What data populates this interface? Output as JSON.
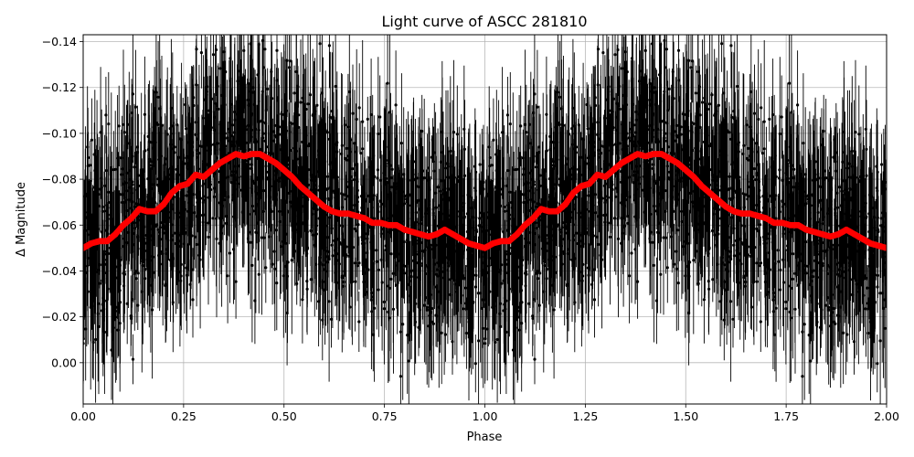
{
  "chart_data": {
    "type": "scatter",
    "title": "Light curve of ASCC 281810",
    "xlabel": "Phase",
    "ylabel": "Δ Magnitude",
    "xlim": [
      0.0,
      2.0
    ],
    "ylim": [
      0.018,
      -0.143
    ],
    "y_axis_inverted": true,
    "grid": true,
    "x_ticks": [
      "0.00",
      "0.25",
      "0.50",
      "0.75",
      "1.00",
      "1.25",
      "1.50",
      "1.75",
      "2.00"
    ],
    "y_ticks": [
      "0.00",
      "−0.02",
      "−0.04",
      "−0.06",
      "−0.08",
      "−0.10",
      "−0.12",
      "−0.14"
    ],
    "series": [
      {
        "kind": "observations-with-errorbars",
        "color": "#000000",
        "phase_period": 1.0,
        "binned_mean_curve": [
          [
            0.0,
            -0.05
          ],
          [
            0.05,
            -0.053
          ],
          [
            0.1,
            -0.06
          ],
          [
            0.15,
            -0.067
          ],
          [
            0.2,
            -0.072
          ],
          [
            0.25,
            -0.077
          ],
          [
            0.3,
            -0.083
          ],
          [
            0.35,
            -0.089
          ],
          [
            0.4,
            -0.091
          ],
          [
            0.45,
            -0.09
          ],
          [
            0.5,
            -0.084
          ],
          [
            0.55,
            -0.076
          ],
          [
            0.6,
            -0.069
          ],
          [
            0.65,
            -0.065
          ],
          [
            0.7,
            -0.063
          ],
          [
            0.75,
            -0.06
          ],
          [
            0.8,
            -0.057
          ],
          [
            0.85,
            -0.056
          ],
          [
            0.9,
            -0.057
          ],
          [
            0.95,
            -0.052
          ],
          [
            1.0,
            -0.05
          ]
        ],
        "typical_scatter": 0.04,
        "typical_errorbar": 0.015
      },
      {
        "kind": "binned-mean",
        "color": "#ff0000",
        "points": [
          [
            0.0,
            -0.05
          ],
          [
            0.02,
            -0.052
          ],
          [
            0.04,
            -0.053
          ],
          [
            0.06,
            -0.053
          ],
          [
            0.08,
            -0.056
          ],
          [
            0.1,
            -0.06
          ],
          [
            0.12,
            -0.063
          ],
          [
            0.14,
            -0.067
          ],
          [
            0.16,
            -0.066
          ],
          [
            0.18,
            -0.066
          ],
          [
            0.2,
            -0.069
          ],
          [
            0.22,
            -0.074
          ],
          [
            0.24,
            -0.077
          ],
          [
            0.26,
            -0.078
          ],
          [
            0.28,
            -0.082
          ],
          [
            0.3,
            -0.081
          ],
          [
            0.32,
            -0.084
          ],
          [
            0.34,
            -0.087
          ],
          [
            0.36,
            -0.089
          ],
          [
            0.38,
            -0.091
          ],
          [
            0.4,
            -0.09
          ],
          [
            0.42,
            -0.091
          ],
          [
            0.44,
            -0.091
          ],
          [
            0.46,
            -0.089
          ],
          [
            0.48,
            -0.087
          ],
          [
            0.5,
            -0.084
          ],
          [
            0.52,
            -0.081
          ],
          [
            0.54,
            -0.077
          ],
          [
            0.56,
            -0.074
          ],
          [
            0.58,
            -0.071
          ],
          [
            0.6,
            -0.068
          ],
          [
            0.62,
            -0.066
          ],
          [
            0.64,
            -0.065
          ],
          [
            0.66,
            -0.065
          ],
          [
            0.68,
            -0.064
          ],
          [
            0.7,
            -0.063
          ],
          [
            0.72,
            -0.061
          ],
          [
            0.74,
            -0.061
          ],
          [
            0.76,
            -0.06
          ],
          [
            0.78,
            -0.06
          ],
          [
            0.8,
            -0.058
          ],
          [
            0.82,
            -0.057
          ],
          [
            0.84,
            -0.056
          ],
          [
            0.86,
            -0.055
          ],
          [
            0.88,
            -0.056
          ],
          [
            0.9,
            -0.058
          ],
          [
            0.92,
            -0.056
          ],
          [
            0.94,
            -0.054
          ],
          [
            0.96,
            -0.052
          ],
          [
            0.98,
            -0.051
          ],
          [
            1.0,
            -0.05
          ],
          [
            1.02,
            -0.052
          ],
          [
            1.04,
            -0.053
          ],
          [
            1.06,
            -0.053
          ],
          [
            1.08,
            -0.056
          ],
          [
            1.1,
            -0.06
          ],
          [
            1.12,
            -0.063
          ],
          [
            1.14,
            -0.067
          ],
          [
            1.16,
            -0.066
          ],
          [
            1.18,
            -0.066
          ],
          [
            1.2,
            -0.069
          ],
          [
            1.22,
            -0.074
          ],
          [
            1.24,
            -0.077
          ],
          [
            1.26,
            -0.078
          ],
          [
            1.28,
            -0.082
          ],
          [
            1.3,
            -0.081
          ],
          [
            1.32,
            -0.084
          ],
          [
            1.34,
            -0.087
          ],
          [
            1.36,
            -0.089
          ],
          [
            1.38,
            -0.091
          ],
          [
            1.4,
            -0.09
          ],
          [
            1.42,
            -0.091
          ],
          [
            1.44,
            -0.091
          ],
          [
            1.46,
            -0.089
          ],
          [
            1.48,
            -0.087
          ],
          [
            1.5,
            -0.084
          ],
          [
            1.52,
            -0.081
          ],
          [
            1.54,
            -0.077
          ],
          [
            1.56,
            -0.074
          ],
          [
            1.58,
            -0.071
          ],
          [
            1.6,
            -0.068
          ],
          [
            1.62,
            -0.066
          ],
          [
            1.64,
            -0.065
          ],
          [
            1.66,
            -0.065
          ],
          [
            1.68,
            -0.064
          ],
          [
            1.7,
            -0.063
          ],
          [
            1.72,
            -0.061
          ],
          [
            1.74,
            -0.061
          ],
          [
            1.76,
            -0.06
          ],
          [
            1.78,
            -0.06
          ],
          [
            1.8,
            -0.058
          ],
          [
            1.82,
            -0.057
          ],
          [
            1.84,
            -0.056
          ],
          [
            1.86,
            -0.055
          ],
          [
            1.88,
            -0.056
          ],
          [
            1.9,
            -0.058
          ],
          [
            1.92,
            -0.056
          ],
          [
            1.94,
            -0.054
          ],
          [
            1.96,
            -0.052
          ],
          [
            1.98,
            -0.051
          ],
          [
            2.0,
            -0.05
          ]
        ]
      }
    ]
  }
}
